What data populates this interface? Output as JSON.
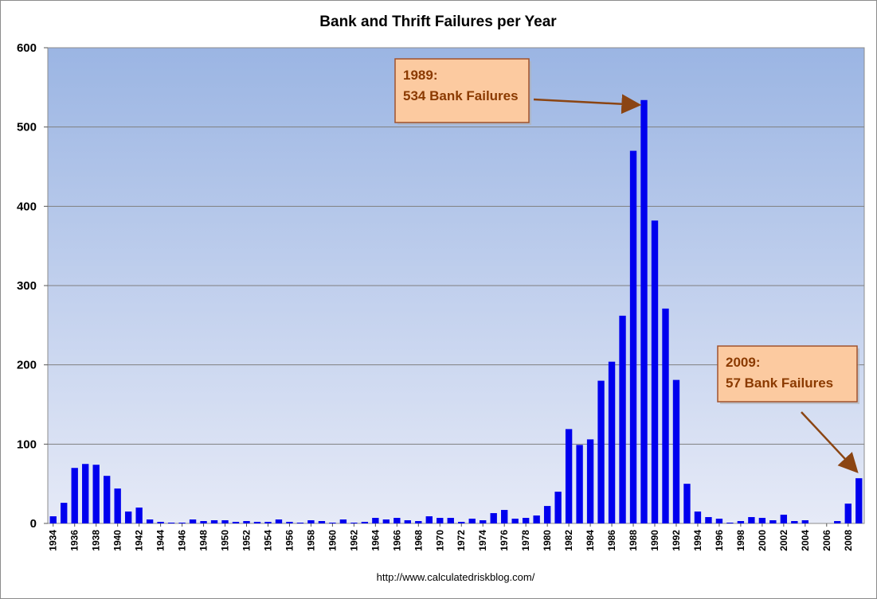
{
  "chart_data": {
    "type": "bar",
    "title": "Bank and Thrift Failures per Year",
    "xlabel": "",
    "ylabel": "",
    "ylim": [
      0,
      600
    ],
    "yticks": [
      0,
      100,
      200,
      300,
      400,
      500,
      600
    ],
    "x_tick_labels": [
      "1934",
      "1936",
      "1938",
      "1940",
      "1942",
      "1944",
      "1946",
      "1948",
      "1950",
      "1952",
      "1954",
      "1956",
      "1958",
      "1960",
      "1962",
      "1964",
      "1966",
      "1968",
      "1970",
      "1972",
      "1974",
      "1976",
      "1978",
      "1980",
      "1982",
      "1984",
      "1986",
      "1988",
      "1990",
      "1992",
      "1994",
      "1996",
      "1998",
      "2000",
      "2002",
      "2004",
      "2006",
      "2008"
    ],
    "categories": [
      1934,
      1935,
      1936,
      1937,
      1938,
      1939,
      1940,
      1941,
      1942,
      1943,
      1944,
      1945,
      1946,
      1947,
      1948,
      1949,
      1950,
      1951,
      1952,
      1953,
      1954,
      1955,
      1956,
      1957,
      1958,
      1959,
      1960,
      1961,
      1962,
      1963,
      1964,
      1965,
      1966,
      1967,
      1968,
      1969,
      1970,
      1971,
      1972,
      1973,
      1974,
      1975,
      1976,
      1977,
      1978,
      1979,
      1980,
      1981,
      1982,
      1983,
      1984,
      1985,
      1986,
      1987,
      1988,
      1989,
      1990,
      1991,
      1992,
      1993,
      1994,
      1995,
      1996,
      1997,
      1998,
      1999,
      2000,
      2001,
      2002,
      2003,
      2004,
      2005,
      2006,
      2007,
      2008,
      2009
    ],
    "series": [
      {
        "name": "Bank and Thrift Failures",
        "color": "#0000ee",
        "values": [
          9,
          26,
          70,
          75,
          74,
          60,
          44,
          15,
          20,
          5,
          2,
          1,
          1,
          5,
          3,
          4,
          4,
          2,
          3,
          2,
          2,
          5,
          2,
          1,
          4,
          3,
          1,
          5,
          1,
          2,
          7,
          5,
          7,
          4,
          3,
          9,
          7,
          7,
          2,
          6,
          4,
          13,
          17,
          6,
          7,
          10,
          22,
          40,
          119,
          99,
          106,
          180,
          204,
          262,
          470,
          534,
          382,
          271,
          181,
          50,
          15,
          8,
          6,
          1,
          3,
          8,
          7,
          4,
          11,
          3,
          4,
          0,
          0,
          3,
          25,
          57
        ]
      }
    ],
    "annotations": [
      {
        "line1": "1989:",
        "line2": "534 Bank Failures",
        "target_year": 1989
      },
      {
        "line1": "2009:",
        "line2": "57 Bank Failures",
        "target_year": 2009
      }
    ],
    "source": "http://www.calculatedriskblog.com/",
    "colors": {
      "plot_top": "#9bb5e3",
      "plot_bottom": "#e6eaf7",
      "bar": "#0000ee",
      "callout_fill": "#fccaa0",
      "callout_text": "#8b3a00",
      "arrow": "#8b4513"
    }
  }
}
